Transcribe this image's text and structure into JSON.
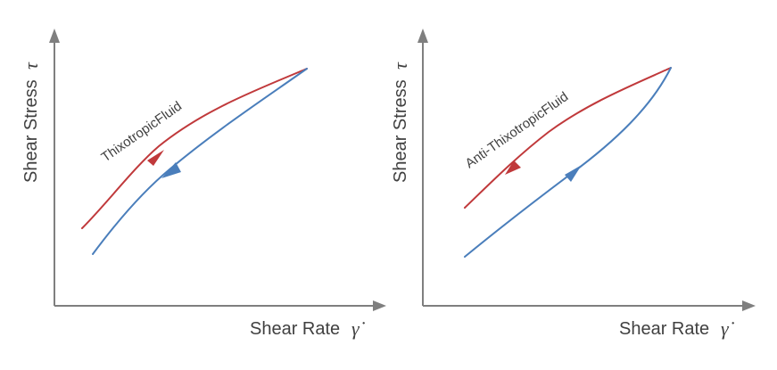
{
  "colors": {
    "axis": "#7f7f7f",
    "text": "#404040",
    "increasing_curve": "#c0393b",
    "decreasing_curve": "#4a7ebb"
  },
  "panels": [
    {
      "curve_label": "ThixotropicFluid",
      "y_axis": {
        "label": "Shear Stress",
        "symbol": "τ"
      },
      "x_axis": {
        "label": "Shear Rate",
        "symbol": "γ̇"
      }
    },
    {
      "curve_label": "Anti-ThixotropicFluid",
      "y_axis": {
        "label": "Shear Stress",
        "symbol": "τ"
      },
      "x_axis": {
        "label": "Shear Rate",
        "symbol": "γ̇"
      }
    }
  ]
}
